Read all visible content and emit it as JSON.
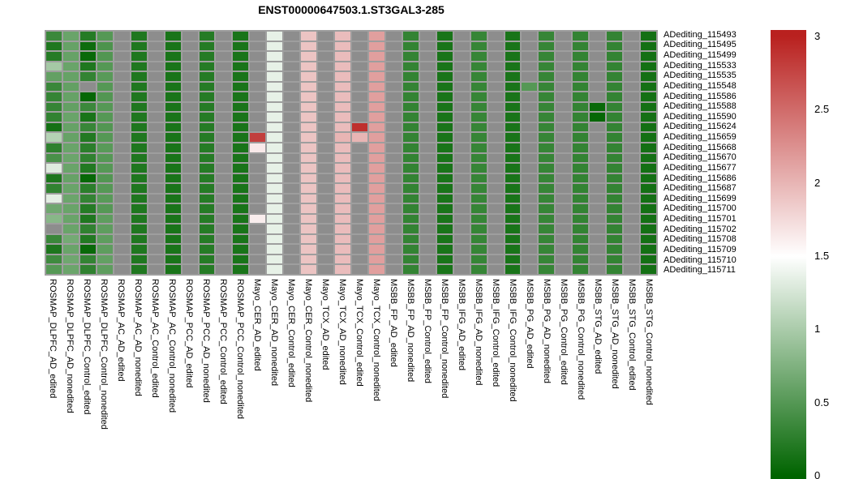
{
  "title": "ENST00000647503.1.ST3GAL3-285",
  "chart_data": {
    "type": "heatmap",
    "title": "ENST00000647503.1.ST3GAL3-285",
    "rows": [
      "ADediting_115493",
      "ADediting_115495",
      "ADediting_115499",
      "ADediting_115533",
      "ADediting_115535",
      "ADediting_115548",
      "ADediting_115586",
      "ADediting_115588",
      "ADediting_115590",
      "ADediting_115624",
      "ADediting_115659",
      "ADediting_115668",
      "ADediting_115670",
      "ADediting_115677",
      "ADediting_115686",
      "ADediting_115687",
      "ADediting_115699",
      "ADediting_115700",
      "ADediting_115701",
      "ADediting_115702",
      "ADediting_115708",
      "ADediting_115709",
      "ADediting_115710",
      "ADediting_115711"
    ],
    "columns": [
      "ROSMAP_DLPFC_AD_edited",
      "ROSMAP_DLPFC_AD_nonedited",
      "ROSMAP_DLPFC_Control_edited",
      "ROSMAP_DLPFC_Control_nonedited",
      "ROSMAP_AC_AD_edited",
      "ROSMAP_AC_AD_nonedited",
      "ROSMAP_AC_Control_edited",
      "ROSMAP_AC_Control_nonedited",
      "ROSMAP_PCC_AD_edited",
      "ROSMAP_PCC_AD_nonedited",
      "ROSMAP_PCC_Control_edited",
      "ROSMAP_PCC_Control_nonedited",
      "Mayo_CER_AD_edited",
      "Mayo_CER_AD_nonedited",
      "Mayo_CER_Control_edited",
      "Mayo_CER_Control_nonedited",
      "Mayo_TCX_AD_edited",
      "Mayo_TCX_AD_nonedited",
      "Mayo_TCX_Control_edited",
      "Mayo_TCX_Control_nonedited",
      "MSBB_FP_AD_edited",
      "MSBB_FP_AD_nonedited",
      "MSBB_FP_Control_edited",
      "MSBB_FP_Control_nonedited",
      "MSBB_IFG_AD_edited",
      "MSBB_IFG_AD_nonedited",
      "MSBB_IFG_Control_edited",
      "MSBB_IFG_Control_nonedited",
      "MSBB_PG_AD_edited",
      "MSBB_PG_AD_nonedited",
      "MSBB_PG_Control_edited",
      "MSBB_PG_Control_nonedited",
      "MSBB_STG_AD_edited",
      "MSBB_STG_AD_nonedited",
      "MSBB_STG_Control_edited",
      "MSBB_STG_Control_nonedited"
    ],
    "values": [
      [
        0.35,
        0.62,
        0.22,
        0.5,
        null,
        0.18,
        null,
        0.15,
        null,
        0.22,
        null,
        0.15,
        null,
        1.36,
        null,
        1.9,
        null,
        1.95,
        null,
        2.15,
        null,
        0.3,
        null,
        0.15,
        null,
        0.32,
        null,
        0.15,
        null,
        0.32,
        null,
        0.3,
        null,
        0.3,
        null,
        0.12
      ],
      [
        0.18,
        0.6,
        0.08,
        0.45,
        null,
        0.18,
        null,
        0.15,
        null,
        0.22,
        null,
        0.15,
        null,
        1.36,
        null,
        1.9,
        null,
        1.95,
        null,
        2.15,
        null,
        0.3,
        null,
        0.15,
        null,
        0.32,
        null,
        0.15,
        null,
        0.32,
        null,
        0.3,
        null,
        0.3,
        null,
        0.12
      ],
      [
        0.22,
        0.6,
        0.05,
        0.48,
        null,
        0.18,
        null,
        0.15,
        null,
        0.22,
        null,
        0.15,
        null,
        1.36,
        null,
        1.9,
        null,
        1.95,
        null,
        2.15,
        null,
        0.3,
        null,
        0.15,
        null,
        0.32,
        null,
        0.15,
        null,
        0.32,
        null,
        0.3,
        null,
        0.3,
        null,
        0.12
      ],
      [
        0.97,
        0.62,
        0.18,
        0.5,
        null,
        0.18,
        null,
        0.15,
        null,
        0.22,
        null,
        0.15,
        null,
        1.36,
        null,
        1.9,
        null,
        1.95,
        null,
        2.15,
        null,
        0.3,
        null,
        0.15,
        null,
        0.32,
        null,
        0.15,
        null,
        0.32,
        null,
        0.3,
        null,
        0.3,
        null,
        0.12
      ],
      [
        0.58,
        0.6,
        0.3,
        0.52,
        null,
        0.18,
        null,
        0.15,
        null,
        0.22,
        null,
        0.15,
        null,
        1.36,
        null,
        1.9,
        null,
        1.95,
        null,
        2.15,
        null,
        0.3,
        null,
        0.15,
        null,
        0.32,
        null,
        0.15,
        null,
        0.32,
        null,
        0.3,
        null,
        0.3,
        null,
        0.12
      ],
      [
        0.34,
        0.58,
        null,
        0.5,
        null,
        0.18,
        null,
        0.15,
        null,
        0.22,
        null,
        0.15,
        null,
        1.36,
        null,
        1.9,
        null,
        1.95,
        null,
        2.15,
        null,
        0.3,
        null,
        0.15,
        null,
        0.32,
        null,
        0.15,
        0.5,
        0.32,
        null,
        0.3,
        null,
        0.3,
        null,
        0.12
      ],
      [
        0.31,
        0.6,
        0.03,
        0.48,
        null,
        0.18,
        null,
        0.15,
        null,
        0.22,
        null,
        0.15,
        null,
        1.36,
        null,
        1.9,
        null,
        1.95,
        null,
        2.15,
        null,
        0.3,
        null,
        0.15,
        null,
        0.32,
        null,
        0.15,
        null,
        0.32,
        null,
        0.3,
        null,
        0.3,
        null,
        0.12
      ],
      [
        0.31,
        0.58,
        0.35,
        0.5,
        null,
        0.18,
        null,
        0.15,
        null,
        0.22,
        null,
        0.15,
        null,
        1.36,
        null,
        1.9,
        null,
        1.95,
        null,
        2.15,
        null,
        0.3,
        null,
        0.15,
        null,
        0.32,
        null,
        0.15,
        null,
        0.32,
        null,
        0.3,
        0.05,
        0.3,
        null,
        0.12
      ],
      [
        0.29,
        0.62,
        0.15,
        0.5,
        null,
        0.18,
        null,
        0.15,
        null,
        0.22,
        null,
        0.15,
        null,
        1.36,
        null,
        1.9,
        null,
        1.95,
        null,
        2.15,
        null,
        0.3,
        null,
        0.15,
        null,
        0.32,
        null,
        0.15,
        null,
        0.32,
        null,
        0.3,
        0.03,
        0.3,
        null,
        0.12
      ],
      [
        0.12,
        0.6,
        0.33,
        0.48,
        null,
        0.18,
        null,
        0.15,
        null,
        0.22,
        null,
        0.15,
        null,
        1.36,
        null,
        1.9,
        null,
        1.95,
        2.9,
        2.15,
        null,
        0.3,
        null,
        0.15,
        null,
        0.32,
        null,
        0.15,
        null,
        0.32,
        null,
        0.3,
        null,
        0.3,
        null,
        0.12
      ],
      [
        1.06,
        0.6,
        0.2,
        0.5,
        null,
        0.18,
        null,
        0.15,
        null,
        0.22,
        null,
        0.15,
        2.8,
        1.36,
        null,
        1.9,
        null,
        2.0,
        2.0,
        2.15,
        null,
        0.3,
        null,
        0.15,
        null,
        0.32,
        null,
        0.15,
        null,
        0.32,
        null,
        0.3,
        null,
        0.3,
        null,
        0.12
      ],
      [
        0.27,
        0.62,
        0.25,
        0.52,
        null,
        0.18,
        null,
        0.15,
        null,
        0.22,
        null,
        0.15,
        1.65,
        1.36,
        null,
        1.9,
        null,
        1.95,
        null,
        2.15,
        null,
        0.3,
        null,
        0.15,
        null,
        0.32,
        null,
        0.15,
        null,
        0.32,
        null,
        0.3,
        null,
        0.3,
        null,
        0.12
      ],
      [
        0.43,
        0.63,
        0.28,
        0.5,
        null,
        0.18,
        null,
        0.15,
        null,
        0.22,
        null,
        0.15,
        null,
        1.36,
        null,
        1.9,
        null,
        1.95,
        null,
        2.15,
        null,
        0.3,
        null,
        0.15,
        null,
        0.32,
        null,
        0.15,
        null,
        0.32,
        null,
        0.3,
        null,
        0.3,
        null,
        0.12
      ],
      [
        1.31,
        0.62,
        0.2,
        0.5,
        null,
        0.18,
        null,
        0.15,
        null,
        0.22,
        null,
        0.15,
        null,
        1.36,
        null,
        1.9,
        null,
        1.95,
        null,
        2.15,
        null,
        0.3,
        null,
        0.15,
        null,
        0.32,
        null,
        0.15,
        null,
        0.32,
        null,
        0.3,
        null,
        0.3,
        null,
        0.12
      ],
      [
        0.17,
        0.6,
        0.04,
        0.48,
        null,
        0.18,
        null,
        0.15,
        null,
        0.22,
        null,
        0.15,
        null,
        1.36,
        null,
        1.9,
        null,
        1.95,
        null,
        2.15,
        null,
        0.3,
        null,
        0.15,
        null,
        0.32,
        null,
        0.15,
        null,
        0.32,
        null,
        0.3,
        null,
        0.3,
        null,
        0.12
      ],
      [
        0.29,
        0.62,
        0.25,
        0.5,
        null,
        0.18,
        null,
        0.15,
        null,
        0.22,
        null,
        0.15,
        null,
        1.36,
        null,
        1.9,
        null,
        1.95,
        null,
        2.15,
        null,
        0.3,
        null,
        0.15,
        null,
        0.32,
        null,
        0.15,
        null,
        0.32,
        null,
        0.3,
        null,
        0.3,
        null,
        0.12
      ],
      [
        1.34,
        0.63,
        0.3,
        0.52,
        null,
        0.18,
        null,
        0.15,
        null,
        0.22,
        null,
        0.15,
        null,
        1.36,
        null,
        1.9,
        null,
        1.95,
        null,
        2.15,
        null,
        0.3,
        null,
        0.15,
        null,
        0.32,
        null,
        0.15,
        null,
        0.32,
        null,
        0.3,
        null,
        0.3,
        null,
        0.12
      ],
      [
        0.65,
        0.62,
        0.22,
        0.5,
        null,
        0.18,
        null,
        0.15,
        null,
        0.22,
        null,
        0.15,
        null,
        1.36,
        null,
        1.9,
        null,
        1.95,
        null,
        2.15,
        null,
        0.3,
        null,
        0.15,
        null,
        0.32,
        null,
        0.15,
        null,
        0.32,
        null,
        0.3,
        null,
        0.3,
        null,
        0.12
      ],
      [
        0.8,
        0.62,
        0.18,
        0.55,
        null,
        0.18,
        null,
        0.15,
        null,
        0.22,
        null,
        0.15,
        1.62,
        1.36,
        null,
        1.9,
        null,
        1.95,
        null,
        2.15,
        null,
        0.3,
        null,
        0.15,
        null,
        0.32,
        null,
        0.15,
        null,
        0.32,
        null,
        0.3,
        null,
        0.3,
        null,
        0.12
      ],
      [
        null,
        0.62,
        0.28,
        0.55,
        null,
        0.18,
        null,
        0.15,
        null,
        0.22,
        null,
        0.15,
        null,
        1.36,
        null,
        1.9,
        null,
        1.95,
        null,
        2.15,
        null,
        0.3,
        null,
        0.15,
        null,
        0.32,
        null,
        0.15,
        null,
        0.32,
        null,
        0.3,
        null,
        0.3,
        null,
        0.12
      ],
      [
        0.34,
        0.68,
        0.2,
        0.55,
        null,
        0.18,
        null,
        0.15,
        null,
        0.22,
        null,
        0.15,
        null,
        1.36,
        null,
        1.9,
        null,
        1.95,
        null,
        2.15,
        null,
        0.3,
        null,
        0.15,
        null,
        0.32,
        null,
        0.15,
        null,
        0.32,
        null,
        0.3,
        null,
        0.3,
        null,
        0.12
      ],
      [
        0.17,
        0.62,
        0.05,
        0.55,
        null,
        0.18,
        null,
        0.15,
        null,
        0.22,
        null,
        0.15,
        null,
        1.36,
        null,
        1.9,
        null,
        1.95,
        null,
        2.15,
        null,
        0.3,
        null,
        0.15,
        null,
        0.32,
        null,
        0.15,
        null,
        0.32,
        null,
        0.3,
        null,
        0.3,
        null,
        0.12
      ],
      [
        0.37,
        0.65,
        0.3,
        0.58,
        null,
        0.18,
        null,
        0.15,
        null,
        0.22,
        null,
        0.15,
        null,
        1.36,
        null,
        1.9,
        null,
        1.95,
        null,
        2.15,
        null,
        0.3,
        null,
        0.15,
        null,
        0.32,
        null,
        0.15,
        null,
        0.32,
        null,
        0.3,
        null,
        0.3,
        null,
        0.12
      ],
      [
        0.5,
        0.63,
        0.28,
        0.55,
        null,
        0.18,
        null,
        0.15,
        null,
        0.22,
        null,
        0.15,
        null,
        1.36,
        null,
        1.9,
        null,
        1.95,
        null,
        2.15,
        null,
        0.3,
        null,
        0.15,
        null,
        0.32,
        null,
        0.15,
        null,
        0.32,
        null,
        0.3,
        null,
        0.3,
        null,
        0.12
      ]
    ],
    "na_color": "#8d8d8d",
    "grid_color": "#9e9e9e",
    "colorbar": {
      "min": 0,
      "max": 3,
      "mid_value": 1.5,
      "color_low": "#006400",
      "color_mid": "#ffffff",
      "color_high": "#b9211f",
      "ticks": [
        "3",
        "2.5",
        "2",
        "1.5",
        "1",
        "0.5",
        "0"
      ],
      "position": "right"
    },
    "legend": "none",
    "grid": "on"
  }
}
